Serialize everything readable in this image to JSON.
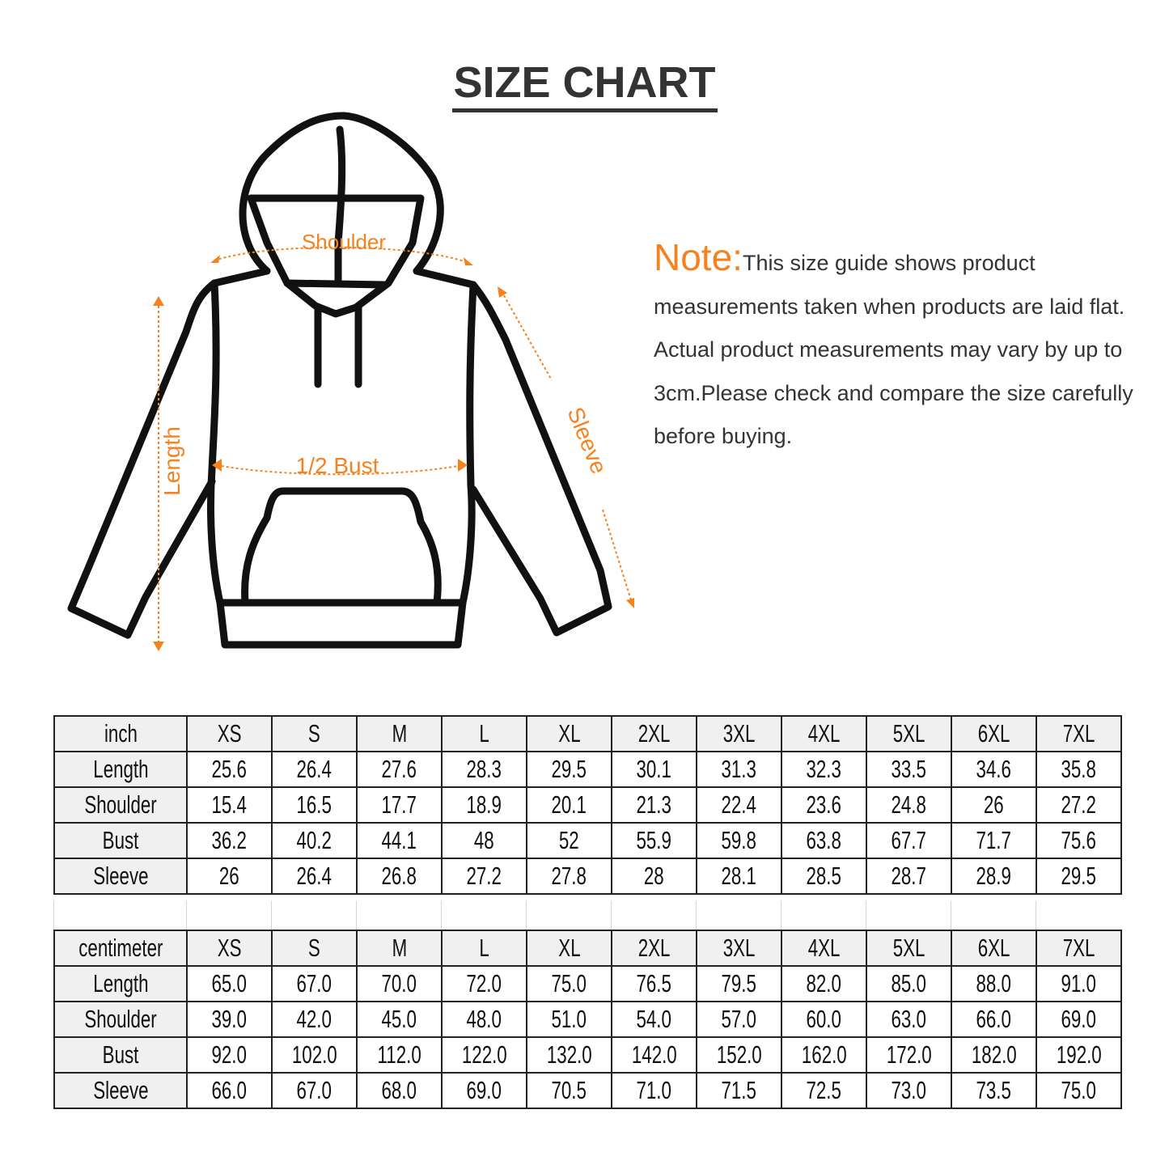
{
  "title": "SIZE CHART",
  "diagram": {
    "labels": {
      "shoulder": "Shoulder",
      "length": "Length",
      "bust": "1/2 Bust",
      "sleeve": "Sleeve"
    },
    "accent_color": "#f5821f"
  },
  "note": {
    "label": "Note:",
    "text": "This size guide shows product measurements taken when products are laid flat. Actual product measurements may vary by up to 3cm.Please check and compare the size carefully before buying."
  },
  "sizes": [
    "XS",
    "S",
    "M",
    "L",
    "XL",
    "2XL",
    "3XL",
    "4XL",
    "5XL",
    "6XL",
    "7XL"
  ],
  "inch_table": {
    "unit": "inch",
    "rows": [
      {
        "label": "Length",
        "values": [
          "25.6",
          "26.4",
          "27.6",
          "28.3",
          "29.5",
          "30.1",
          "31.3",
          "32.3",
          "33.5",
          "34.6",
          "35.8"
        ]
      },
      {
        "label": "Shoulder",
        "values": [
          "15.4",
          "16.5",
          "17.7",
          "18.9",
          "20.1",
          "21.3",
          "22.4",
          "23.6",
          "24.8",
          "26",
          "27.2"
        ]
      },
      {
        "label": "Bust",
        "values": [
          "36.2",
          "40.2",
          "44.1",
          "48",
          "52",
          "55.9",
          "59.8",
          "63.8",
          "67.7",
          "71.7",
          "75.6"
        ]
      },
      {
        "label": "Sleeve",
        "values": [
          "26",
          "26.4",
          "26.8",
          "27.2",
          "27.8",
          "28",
          "28.1",
          "28.5",
          "28.7",
          "28.9",
          "29.5"
        ]
      }
    ]
  },
  "cm_table": {
    "unit": "centimeter",
    "rows": [
      {
        "label": "Length",
        "values": [
          "65.0",
          "67.0",
          "70.0",
          "72.0",
          "75.0",
          "76.5",
          "79.5",
          "82.0",
          "85.0",
          "88.0",
          "91.0"
        ]
      },
      {
        "label": "Shoulder",
        "values": [
          "39.0",
          "42.0",
          "45.0",
          "48.0",
          "51.0",
          "54.0",
          "57.0",
          "60.0",
          "63.0",
          "66.0",
          "69.0"
        ]
      },
      {
        "label": "Bust",
        "values": [
          "92.0",
          "102.0",
          "112.0",
          "122.0",
          "132.0",
          "142.0",
          "152.0",
          "162.0",
          "172.0",
          "182.0",
          "192.0"
        ]
      },
      {
        "label": "Sleeve",
        "values": [
          "66.0",
          "67.0",
          "68.0",
          "69.0",
          "70.5",
          "71.0",
          "71.5",
          "72.5",
          "73.0",
          "73.5",
          "75.0"
        ]
      }
    ]
  }
}
